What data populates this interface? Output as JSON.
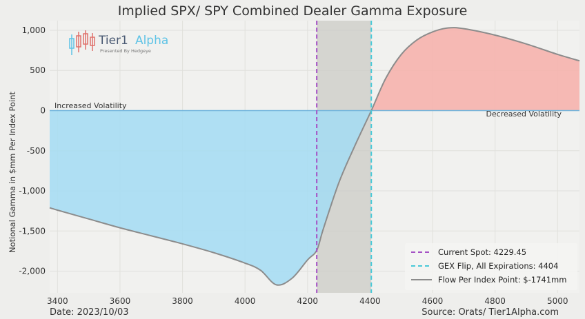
{
  "chart_data": {
    "type": "area",
    "title": "Implied SPX/ SPY Combined Dealer Gamma Exposure",
    "ylabel": "Notional Gamma in $mm Per Index Point",
    "xlim": [
      3375,
      5070
    ],
    "ylim": [
      -2270,
      1120
    ],
    "x_ticks": [
      "3400",
      "3600",
      "3800",
      "4000",
      "4200",
      "4400",
      "4600",
      "4800",
      "5000"
    ],
    "y_ticks": [
      "1,000",
      "500",
      "0",
      "-500",
      "-1,000",
      "-1,500",
      "-2,000"
    ],
    "series": [
      {
        "name": "Flow Per Index Point: $-1741mm",
        "points": [
          [
            3375,
            -1210
          ],
          [
            3400,
            -1240
          ],
          [
            3500,
            -1350
          ],
          [
            3600,
            -1460
          ],
          [
            3700,
            -1560
          ],
          [
            3800,
            -1660
          ],
          [
            3900,
            -1770
          ],
          [
            4000,
            -1900
          ],
          [
            4050,
            -1990
          ],
          [
            4100,
            -2170
          ],
          [
            4150,
            -2090
          ],
          [
            4200,
            -1860
          ],
          [
            4229.45,
            -1741
          ],
          [
            4250,
            -1480
          ],
          [
            4300,
            -900
          ],
          [
            4350,
            -450
          ],
          [
            4404,
            0
          ],
          [
            4450,
            400
          ],
          [
            4500,
            700
          ],
          [
            4550,
            880
          ],
          [
            4600,
            980
          ],
          [
            4650,
            1030
          ],
          [
            4700,
            1020
          ],
          [
            4800,
            940
          ],
          [
            4900,
            830
          ],
          [
            5000,
            700
          ],
          [
            5070,
            620
          ]
        ]
      }
    ],
    "markers": {
      "current_spot": {
        "label": "Current Spot: 4229.45",
        "value": 4229.45
      },
      "gex_flip": {
        "label": "GEX Flip, All Expirations: 4404",
        "value": 4404
      }
    },
    "annotations": {
      "left": "Increased Volatility",
      "right": "Decreased Volatility"
    },
    "colors": {
      "negative_fill": "#a3dcf3",
      "positive_fill": "#f6b2ad",
      "curve": "#8c8c8c",
      "spot_line": "#a552c5",
      "flip_line": "#49c9d8",
      "zero_line": "#6fb4dc",
      "shaded_band": "#cbcbc6"
    },
    "legend_position": "bottom-right",
    "grid": true
  },
  "logo": {
    "name_main": "Tier1",
    "name_accent": "Alpha",
    "tagline": "Presented By Hedgeye"
  },
  "footer": {
    "date": "Date: 2023/10/03",
    "source": "Source: Orats/ Tier1Alpha.com"
  }
}
